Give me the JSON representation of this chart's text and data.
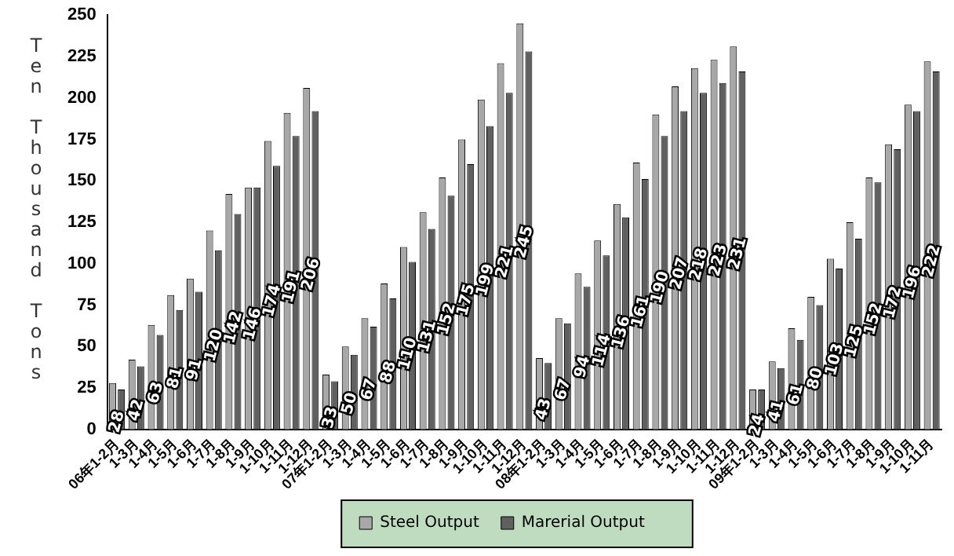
{
  "chart_data": {
    "type": "bar",
    "ylabel": "Ten Thousand Tons",
    "categories": [
      "06年1-2月",
      "1-3月",
      "1-4月",
      "1-5月",
      "1-6月",
      "1-7月",
      "1-8月",
      "1-9月",
      "1-10月",
      "1-11月",
      "1-12月",
      "07年1-2月",
      "1-3月",
      "1-4月",
      "1-5月",
      "1-6月",
      "1-7月",
      "1-8月",
      "1-9月",
      "1-10月",
      "1-11月",
      "1-12月",
      "08年1-2月",
      "1-3月",
      "1-4月",
      "1-5月",
      "1-6月",
      "1-7月",
      "1-8月",
      "1-9月",
      "1-10月",
      "1-11月",
      "1-12月",
      "09年1-2月",
      "1-3月",
      "1-4月",
      "1-5月",
      "1-6月",
      "1-7月",
      "1-8月",
      "1-9月",
      "1-10月",
      "1-11月"
    ],
    "series": [
      {
        "name": "Steel Output",
        "color": "#a8a8a8",
        "values": [
          28,
          42,
          63,
          81,
          91,
          120,
          142,
          146,
          174,
          191,
          206,
          33,
          50,
          67,
          88,
          110,
          131,
          152,
          175,
          199,
          221,
          245,
          43,
          67,
          94,
          114,
          136,
          161,
          190,
          207,
          218,
          223,
          231,
          24,
          41,
          61,
          80,
          103,
          125,
          152,
          172,
          196,
          222
        ],
        "value_labels": [
          "28",
          "42",
          "63",
          "81",
          "91",
          "120",
          "142",
          "146",
          "174",
          "191",
          "206",
          "33",
          "50",
          "67",
          "88",
          "110",
          "131",
          "152",
          "175",
          "199",
          "221",
          "245",
          "43",
          "67",
          "94",
          "114",
          "136",
          "161",
          "190",
          "207",
          "218",
          "223",
          "231",
          "24",
          "41",
          "61",
          "80",
          "103",
          "125",
          "152",
          "172",
          "196",
          "222"
        ]
      },
      {
        "name": "Marerial Output",
        "color": "#606060",
        "values": [
          24,
          38,
          57,
          72,
          83,
          108,
          130,
          146,
          159,
          177,
          192,
          29,
          45,
          62,
          79,
          101,
          121,
          141,
          160,
          183,
          203,
          228,
          40,
          64,
          86,
          105,
          128,
          151,
          177,
          192,
          203,
          209,
          216,
          24,
          37,
          54,
          75,
          97,
          115,
          149,
          169,
          192,
          216
        ]
      }
    ],
    "ylim": [
      0,
      250
    ],
    "yticks": [
      0,
      25,
      50,
      75,
      100,
      125,
      150,
      175,
      200,
      225,
      250
    ],
    "grid": false,
    "legend": "bottom"
  }
}
